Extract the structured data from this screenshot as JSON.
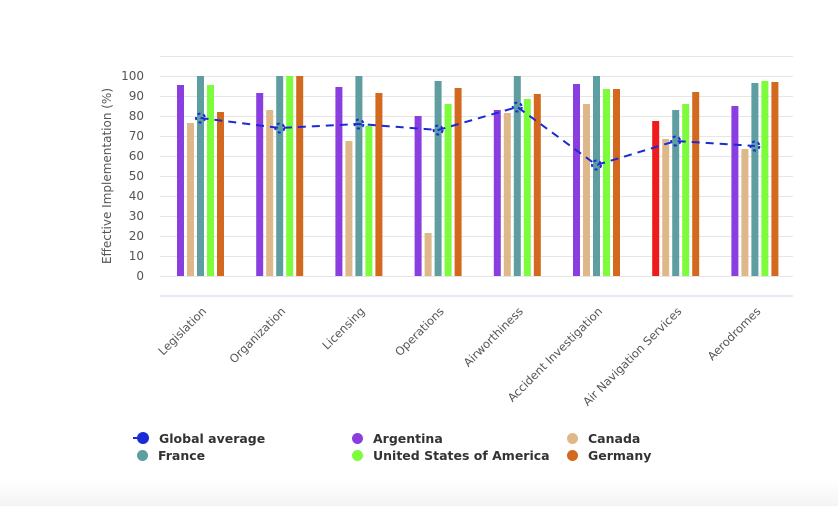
{
  "chart_data": {
    "type": "bar",
    "title": "",
    "xlabel": "",
    "ylabel": "Effective Implementation (%)",
    "ylim": [
      0,
      110
    ],
    "yticks": [
      0,
      10,
      20,
      30,
      40,
      50,
      60,
      70,
      80,
      90,
      100
    ],
    "grid": true,
    "legend_position": "bottom",
    "categories": [
      "Legislation",
      "Organization",
      "Licensing",
      "Operations",
      "Airworthiness",
      "Accident Investigation",
      "Air Navigation Services",
      "Aerodromes"
    ],
    "series": [
      {
        "name": "Argentina",
        "type": "bar",
        "color": "#8a3ee0",
        "values": [
          95.5,
          91.5,
          94.5,
          80,
          83,
          96,
          77.5,
          85
        ],
        "highlight": {
          "index": 6,
          "color": "#f01a1a"
        }
      },
      {
        "name": "Canada",
        "type": "bar",
        "color": "#dfb88a",
        "values": [
          76.5,
          83,
          67.5,
          21.5,
          81.5,
          86,
          68.5,
          63.5
        ]
      },
      {
        "name": "France",
        "type": "bar",
        "color": "#5f9ea0",
        "values": [
          100,
          100,
          100,
          97.5,
          100,
          100,
          83,
          96.5
        ]
      },
      {
        "name": "United States of America",
        "type": "bar",
        "color": "#7cfc3a",
        "values": [
          95.5,
          100,
          75,
          86,
          88.5,
          93.5,
          86,
          97.5
        ]
      },
      {
        "name": "Germany",
        "type": "bar",
        "color": "#d2691e",
        "values": [
          82,
          100,
          91.5,
          94,
          91,
          93.5,
          92,
          97
        ]
      },
      {
        "name": "Global average",
        "type": "line",
        "style": "dashed",
        "color": "#1a2bd6",
        "values": [
          79,
          74,
          76,
          73,
          84.5,
          55.5,
          67.5,
          65
        ]
      }
    ],
    "legend": [
      {
        "name": "Global average",
        "color": "#1a2bd6",
        "kind": "line"
      },
      {
        "name": "Argentina",
        "color": "#8a3ee0",
        "kind": "bar"
      },
      {
        "name": "Canada",
        "color": "#dfb88a",
        "kind": "bar"
      },
      {
        "name": "France",
        "color": "#5f9ea0",
        "kind": "bar"
      },
      {
        "name": "United States of America",
        "color": "#7cfc3a",
        "kind": "bar"
      },
      {
        "name": "Germany",
        "color": "#d2691e",
        "kind": "bar"
      }
    ]
  }
}
